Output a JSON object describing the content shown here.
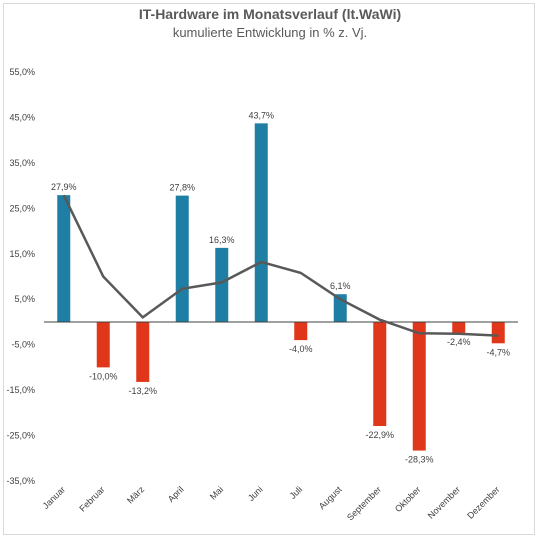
{
  "chart_data": {
    "type": "bar",
    "title": "IT-Hardware im Monatsverlauf (lt.WaWi)",
    "subtitle": "kumulierte Entwicklung in % z. Vj.",
    "categories": [
      "Januar",
      "Februar",
      "März",
      "April",
      "Mai",
      "Juni",
      "Juli",
      "August",
      "September",
      "Oktober",
      "November",
      "Dezember"
    ],
    "values": [
      27.9,
      -10.0,
      -13.2,
      27.8,
      16.3,
      43.7,
      -4.0,
      6.1,
      -22.9,
      -28.3,
      -2.4,
      -4.7
    ],
    "value_labels": [
      "27,9%",
      "-10,0%",
      "-13,2%",
      "27,8%",
      "16,3%",
      "43,7%",
      "-4,0%",
      "6,1%",
      "-22,9%",
      "-28,3%",
      "-2,4%",
      "-4,7%"
    ],
    "trend_line": [
      27.9,
      10.0,
      1.0,
      7.3,
      8.7,
      13.2,
      10.8,
      5.0,
      0.5,
      -2.5,
      -2.6,
      -3.0
    ],
    "yticks": [
      55,
      45,
      35,
      25,
      15,
      5,
      -5,
      -15,
      -25,
      -35
    ],
    "ytick_labels": [
      "55,0%",
      "45,0%",
      "35,0%",
      "25,0%",
      "15,0%",
      "5,0%",
      "-5,0%",
      "-15,0%",
      "-25,0%",
      "-35,0%"
    ],
    "ylim": [
      -35,
      55
    ],
    "grid": false,
    "colors": {
      "positive": "#1f7ea3",
      "negative": "#e0361a",
      "line": "#595959",
      "axis": "#404040"
    }
  }
}
